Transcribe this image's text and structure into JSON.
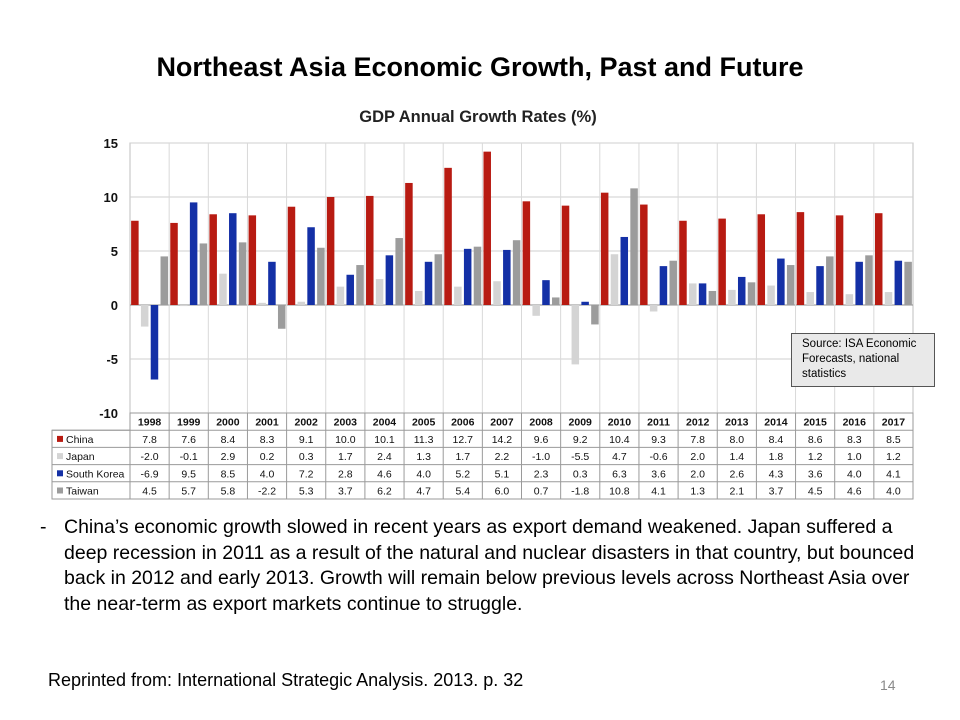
{
  "slide": {
    "title": "Northeast Asia Economic Growth, Past and Future",
    "bullet_dash": "-",
    "bullet_text": "China’s economic growth slowed in recent years as export demand weakened. Japan suffered a deep recession in 2011 as a result of the natural and nuclear disasters in that country, but bounced back in 2012 and early 2013.  Growth will remain below previous levels across Northeast Asia over the near-term as export markets continue to struggle.",
    "reprint": "Reprinted from: International Strategic Analysis. 2013. p. 32",
    "page_number": "14",
    "source_note": "Source: ISA Economic Forecasts, national statistics"
  },
  "chart_data": {
    "type": "bar",
    "title": "GDP Annual Growth Rates (%)",
    "xlabel": "",
    "ylabel": "",
    "ylim": [
      -10,
      15
    ],
    "yticks": [
      "15",
      "10",
      "5",
      "0",
      "-5",
      "-10"
    ],
    "ytick_values": [
      15,
      10,
      5,
      0,
      -5,
      -10
    ],
    "grid": true,
    "legend": "data-table-left",
    "categories": [
      "1998",
      "1999",
      "2000",
      "2001",
      "2002",
      "2003",
      "2004",
      "2005",
      "2006",
      "2007",
      "2008",
      "2009",
      "2010",
      "2011",
      "2012",
      "2013",
      "2014",
      "2015",
      "2016",
      "2017"
    ],
    "series": [
      {
        "name": "China",
        "color": "#b81b12",
        "values": [
          7.8,
          7.6,
          8.4,
          8.3,
          9.1,
          10.0,
          10.1,
          11.3,
          12.7,
          14.2,
          9.6,
          9.2,
          10.4,
          9.3,
          7.8,
          8.0,
          8.4,
          8.6,
          8.3,
          8.5
        ],
        "labels": [
          "7.8",
          "7.6",
          "8.4",
          "8.3",
          "9.1",
          "10.0",
          "10.1",
          "11.3",
          "12.7",
          "14.2",
          "9.6",
          "9.2",
          "10.4",
          "9.3",
          "7.8",
          "8.0",
          "8.4",
          "8.6",
          "8.3",
          "8.5"
        ]
      },
      {
        "name": "Japan",
        "color": "#d4d4d4",
        "values": [
          -2.0,
          -0.1,
          2.9,
          0.2,
          0.3,
          1.7,
          2.4,
          1.3,
          1.7,
          2.2,
          -1.0,
          -5.5,
          4.7,
          -0.6,
          2.0,
          1.4,
          1.8,
          1.2,
          1.0,
          1.2
        ],
        "labels": [
          "-2.0",
          "-0.1",
          "2.9",
          "0.2",
          "0.3",
          "1.7",
          "2.4",
          "1.3",
          "1.7",
          "2.2",
          "-1.0",
          "-5.5",
          "4.7",
          "-0.6",
          "2.0",
          "1.4",
          "1.8",
          "1.2",
          "1.0",
          "1.2"
        ]
      },
      {
        "name": "South Korea",
        "color": "#1430a6",
        "values": [
          -6.9,
          9.5,
          8.5,
          4.0,
          7.2,
          2.8,
          4.6,
          4.0,
          5.2,
          5.1,
          2.3,
          0.3,
          6.3,
          3.6,
          2.0,
          2.6,
          4.3,
          3.6,
          4.0,
          4.1
        ],
        "labels": [
          "-6.9",
          "9.5",
          "8.5",
          "4.0",
          "7.2",
          "2.8",
          "4.6",
          "4.0",
          "5.2",
          "5.1",
          "2.3",
          "0.3",
          "6.3",
          "3.6",
          "2.0",
          "2.6",
          "4.3",
          "3.6",
          "4.0",
          "4.1"
        ]
      },
      {
        "name": "Taiwan",
        "color": "#9c9c9c",
        "values": [
          4.5,
          5.7,
          5.8,
          -2.2,
          5.3,
          3.7,
          6.2,
          4.7,
          5.4,
          6.0,
          0.7,
          -1.8,
          10.8,
          4.1,
          1.3,
          2.1,
          3.7,
          4.5,
          4.6,
          4.0
        ],
        "labels": [
          "4.5",
          "5.7",
          "5.8",
          "-2.2",
          "5.3",
          "3.7",
          "6.2",
          "4.7",
          "5.4",
          "6.0",
          "0.7",
          "-1.8",
          "10.8",
          "4.1",
          "1.3",
          "2.1",
          "3.7",
          "4.5",
          "4.6",
          "4.0"
        ]
      }
    ]
  }
}
